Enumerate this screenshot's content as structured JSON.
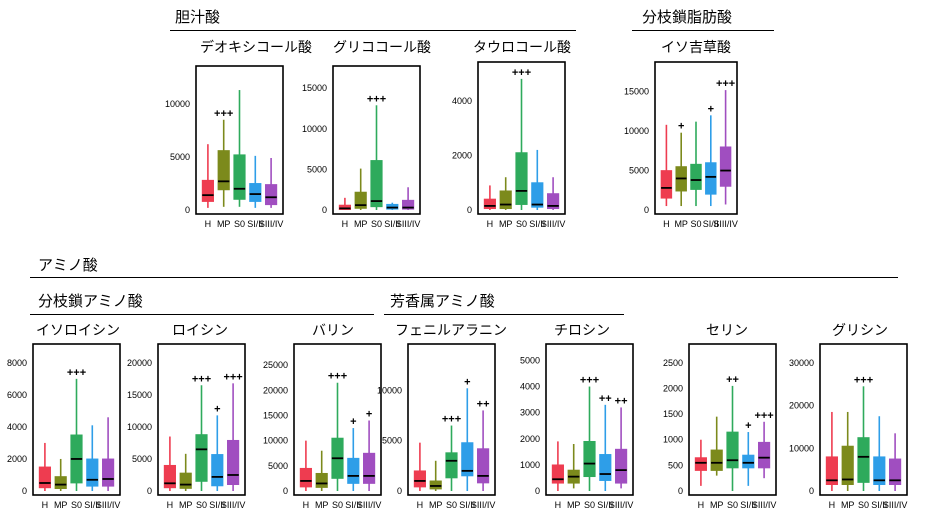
{
  "headers": {
    "bile_acid": "胆汁酸",
    "bcfa": "分枝鎖脂肪酸",
    "amino_acid": "アミノ酸",
    "bcaa": "分枝鎖アミノ酸",
    "aromatic": "芳香属アミノ酸"
  },
  "chart_data": [
    {
      "type": "box",
      "title": "デオキシコール酸",
      "categories": [
        "H",
        "MP",
        "S0",
        "SI/II",
        "SIII/IV"
      ],
      "ylim": [
        0,
        13000
      ],
      "ticks": [
        0,
        5000,
        10000
      ],
      "boxes": [
        {
          "whislo": 200,
          "q1": 800,
          "med": 1400,
          "q3": 2800,
          "whishi": 6200
        },
        {
          "whislo": 300,
          "q1": 1900,
          "med": 2700,
          "q3": 5600,
          "whishi": 8500
        },
        {
          "whislo": 300,
          "q1": 1000,
          "med": 2000,
          "q3": 5200,
          "whishi": 11300
        },
        {
          "whislo": 200,
          "q1": 800,
          "med": 1500,
          "q3": 2500,
          "whishi": 5100
        },
        {
          "whislo": 200,
          "q1": 500,
          "med": 1200,
          "q3": 2400,
          "whishi": 4900
        }
      ],
      "annotations": [
        "",
        "+++",
        "",
        "",
        ""
      ]
    },
    {
      "type": "box",
      "title": "グリココール酸",
      "categories": [
        "H",
        "MP",
        "S0",
        "SI/II",
        "SIII/IV"
      ],
      "ylim": [
        0,
        17000
      ],
      "ticks": [
        0,
        5000,
        10000,
        15000
      ],
      "boxes": [
        {
          "whislo": 0,
          "q1": 50,
          "med": 200,
          "q3": 600,
          "whishi": 1500
        },
        {
          "whislo": 0,
          "q1": 200,
          "med": 600,
          "q3": 2200,
          "whishi": 5100
        },
        {
          "whislo": 0,
          "q1": 400,
          "med": 1100,
          "q3": 6100,
          "whishi": 12900
        },
        {
          "whislo": 0,
          "q1": 100,
          "med": 300,
          "q3": 700,
          "whishi": 900
        },
        {
          "whislo": 0,
          "q1": 100,
          "med": 300,
          "q3": 1200,
          "whishi": 2800
        }
      ],
      "annotations": [
        "",
        "",
        "+++",
        "",
        ""
      ]
    },
    {
      "type": "box",
      "title": "タウロコール酸",
      "categories": [
        "H",
        "MP",
        "S0",
        "SI/II",
        "SIII/IV"
      ],
      "ylim": [
        0,
        5200
      ],
      "ticks": [
        0,
        2000,
        4000
      ],
      "boxes": [
        {
          "whislo": 0,
          "q1": 50,
          "med": 150,
          "q3": 400,
          "whishi": 900
        },
        {
          "whislo": 0,
          "q1": 50,
          "med": 200,
          "q3": 700,
          "whishi": 1200
        },
        {
          "whislo": 0,
          "q1": 200,
          "med": 700,
          "q3": 2100,
          "whishi": 4800
        },
        {
          "whislo": 0,
          "q1": 100,
          "med": 200,
          "q3": 1000,
          "whishi": 2200
        },
        {
          "whislo": 0,
          "q1": 50,
          "med": 150,
          "q3": 600,
          "whishi": 1200
        }
      ],
      "annotations": [
        "",
        "",
        "+++",
        "",
        ""
      ]
    },
    {
      "type": "box",
      "title": "イソ吉草酸",
      "categories": [
        "H",
        "MP",
        "S0",
        "SI/II",
        "SIII/IV"
      ],
      "ylim": [
        0,
        18000
      ],
      "ticks": [
        0,
        5000,
        10000,
        15000
      ],
      "boxes": [
        {
          "whislo": 500,
          "q1": 1500,
          "med": 2800,
          "q3": 5000,
          "whishi": 10800
        },
        {
          "whislo": 500,
          "q1": 2400,
          "med": 4000,
          "q3": 5500,
          "whishi": 9800
        },
        {
          "whislo": 500,
          "q1": 2600,
          "med": 3800,
          "q3": 5800,
          "whishi": 11200
        },
        {
          "whislo": 500,
          "q1": 2000,
          "med": 4200,
          "q3": 6000,
          "whishi": 12000
        },
        {
          "whislo": 700,
          "q1": 3000,
          "med": 5000,
          "q3": 8000,
          "whishi": 15200
        }
      ],
      "annotations": [
        "",
        "+",
        "",
        "+",
        "+++"
      ]
    },
    {
      "type": "box",
      "title": "イソロイシン",
      "categories": [
        "H",
        "MP",
        "S0",
        "SI/II",
        "SIII/IV"
      ],
      "ylim": [
        0,
        8800
      ],
      "ticks": [
        0,
        2000,
        4000,
        6000,
        8000
      ],
      "boxes": [
        {
          "whislo": 0,
          "q1": 200,
          "med": 500,
          "q3": 1500,
          "whishi": 3000
        },
        {
          "whislo": 0,
          "q1": 150,
          "med": 400,
          "q3": 900,
          "whishi": 2000
        },
        {
          "whislo": 0,
          "q1": 500,
          "med": 2000,
          "q3": 3500,
          "whishi": 7000
        },
        {
          "whislo": 0,
          "q1": 300,
          "med": 700,
          "q3": 2000,
          "whishi": 4100
        },
        {
          "whislo": 0,
          "q1": 300,
          "med": 750,
          "q3": 2000,
          "whishi": 4600
        }
      ],
      "annotations": [
        "",
        "",
        "+++",
        "",
        ""
      ]
    },
    {
      "type": "box",
      "title": "ロイシン",
      "categories": [
        "H",
        "MP",
        "S0",
        "SI/II",
        "SIII/IV"
      ],
      "ylim": [
        0,
        22000
      ],
      "ticks": [
        0,
        5000,
        10000,
        15000,
        20000
      ],
      "boxes": [
        {
          "whislo": 0,
          "q1": 500,
          "med": 1200,
          "q3": 4000,
          "whishi": 8500
        },
        {
          "whislo": 0,
          "q1": 400,
          "med": 1000,
          "q3": 2800,
          "whishi": 5800
        },
        {
          "whislo": 0,
          "q1": 1500,
          "med": 6500,
          "q3": 8800,
          "whishi": 16500
        },
        {
          "whislo": 0,
          "q1": 800,
          "med": 2200,
          "q3": 5700,
          "whishi": 11800
        },
        {
          "whislo": 0,
          "q1": 1000,
          "med": 2500,
          "q3": 7900,
          "whishi": 16800
        }
      ],
      "annotations": [
        "",
        "",
        "+++",
        "+",
        "+++"
      ]
    },
    {
      "type": "box",
      "title": "バリン",
      "categories": [
        "H",
        "MP",
        "S0",
        "SI/II",
        "SIII/IV"
      ],
      "ylim": [
        0,
        28000
      ],
      "ticks": [
        0,
        5000,
        10000,
        15000,
        20000,
        25000
      ],
      "boxes": [
        {
          "whislo": 0,
          "q1": 800,
          "med": 2000,
          "q3": 4500,
          "whishi": 10000
        },
        {
          "whislo": 0,
          "q1": 700,
          "med": 1500,
          "q3": 3500,
          "whishi": 8000
        },
        {
          "whislo": 0,
          "q1": 2500,
          "med": 6500,
          "q3": 10500,
          "whishi": 21500
        },
        {
          "whislo": 0,
          "q1": 1500,
          "med": 3000,
          "q3": 6500,
          "whishi": 12500
        },
        {
          "whislo": 0,
          "q1": 1500,
          "med": 3000,
          "q3": 7500,
          "whishi": 14000
        }
      ],
      "annotations": [
        "",
        "",
        "+++",
        "+",
        "+"
      ]
    },
    {
      "type": "box",
      "title": "フェニルアラニン",
      "categories": [
        "H",
        "MP",
        "S0",
        "SI/II",
        "SIII/IV"
      ],
      "ylim": [
        0,
        14000
      ],
      "ticks": [
        0,
        5000,
        10000
      ],
      "boxes": [
        {
          "whislo": 0,
          "q1": 400,
          "med": 1000,
          "q3": 2000,
          "whishi": 4800
        },
        {
          "whislo": 0,
          "q1": 200,
          "med": 500,
          "q3": 1000,
          "whishi": 3000
        },
        {
          "whislo": 0,
          "q1": 1300,
          "med": 3000,
          "q3": 3800,
          "whishi": 6500
        },
        {
          "whislo": 0,
          "q1": 1500,
          "med": 2000,
          "q3": 4800,
          "whishi": 10200
        },
        {
          "whislo": 0,
          "q1": 800,
          "med": 1500,
          "q3": 4200,
          "whishi": 8000
        }
      ],
      "annotations": [
        "",
        "",
        "+++",
        "+",
        "++"
      ]
    },
    {
      "type": "box",
      "title": "チロシン",
      "categories": [
        "H",
        "MP",
        "S0",
        "SI/II",
        "SIII/IV"
      ],
      "ylim": [
        0,
        5400
      ],
      "ticks": [
        0,
        1000,
        2000,
        3000,
        4000,
        5000
      ],
      "boxes": [
        {
          "whislo": 0,
          "q1": 300,
          "med": 450,
          "q3": 1000,
          "whishi": 1900
        },
        {
          "whislo": 100,
          "q1": 300,
          "med": 550,
          "q3": 800,
          "whishi": 1800
        },
        {
          "whislo": 0,
          "q1": 550,
          "med": 1050,
          "q3": 1900,
          "whishi": 4000
        },
        {
          "whislo": 0,
          "q1": 400,
          "med": 650,
          "q3": 1400,
          "whishi": 3300
        },
        {
          "whislo": 100,
          "q1": 300,
          "med": 800,
          "q3": 1600,
          "whishi": 3200
        }
      ],
      "annotations": [
        "",
        "",
        "+++",
        "++",
        "++"
      ]
    },
    {
      "type": "box",
      "title": "セリン",
      "categories": [
        "H",
        "MP",
        "S0",
        "SI/II",
        "SIII/IV"
      ],
      "ylim": [
        0,
        2750
      ],
      "ticks": [
        0,
        500,
        1000,
        1500,
        2000,
        2500
      ],
      "boxes": [
        {
          "whislo": 100,
          "q1": 400,
          "med": 550,
          "q3": 650,
          "whishi": 1000
        },
        {
          "whislo": 300,
          "q1": 400,
          "med": 550,
          "q3": 800,
          "whishi": 1450
        },
        {
          "whislo": 0,
          "q1": 450,
          "med": 600,
          "q3": 1150,
          "whishi": 2050
        },
        {
          "whislo": 100,
          "q1": 450,
          "med": 550,
          "q3": 700,
          "whishi": 1150
        },
        {
          "whislo": 250,
          "q1": 450,
          "med": 650,
          "q3": 950,
          "whishi": 1350
        }
      ],
      "annotations": [
        "",
        "",
        "++",
        "+",
        "+++"
      ]
    },
    {
      "type": "box",
      "title": "グリシン",
      "categories": [
        "H",
        "MP",
        "S0",
        "SI/II",
        "SIII/IV"
      ],
      "ylim": [
        0,
        33000
      ],
      "ticks": [
        0,
        10000,
        20000,
        30000
      ],
      "boxes": [
        {
          "whislo": 0,
          "q1": 1500,
          "med": 2500,
          "q3": 8000,
          "whishi": 18500
        },
        {
          "whislo": 0,
          "q1": 1500,
          "med": 2700,
          "q3": 10500,
          "whishi": 18500
        },
        {
          "whislo": 0,
          "q1": 2000,
          "med": 8000,
          "q3": 12500,
          "whishi": 24500
        },
        {
          "whislo": 0,
          "q1": 1500,
          "med": 2500,
          "q3": 8000,
          "whishi": 17500
        },
        {
          "whislo": 0,
          "q1": 1500,
          "med": 2500,
          "q3": 7500,
          "whishi": 13500
        }
      ],
      "annotations": [
        "",
        "",
        "+++",
        "",
        ""
      ]
    }
  ],
  "colors": {
    "H": "#ee3c50",
    "MP": "#7c8a1c",
    "S0": "#2eaa5c",
    "SI/II": "#2e9ee8",
    "SIII/IV": "#a04ec0"
  }
}
